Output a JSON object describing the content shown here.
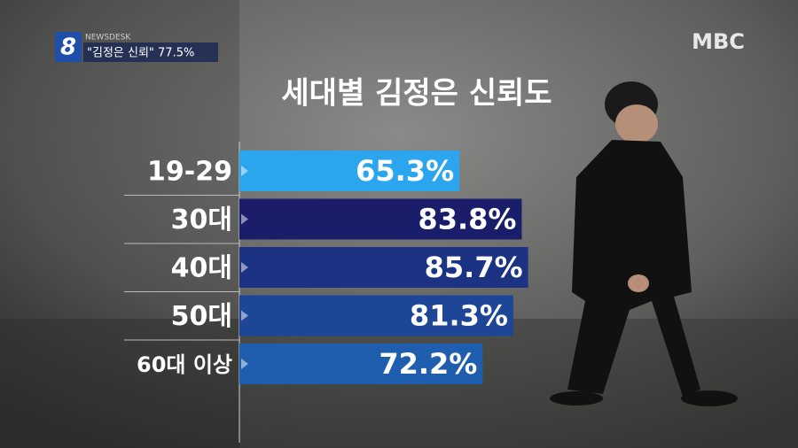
{
  "overlay": {
    "program": "NEWSDESK",
    "channel_number": "8",
    "headline": "\"김정은 신뢰\" 77.5%",
    "logo": "MBC"
  },
  "chart_data": {
    "type": "bar",
    "orientation": "horizontal",
    "title": "세대별 김정은 신뢰도",
    "categories": [
      "19-29",
      "30대",
      "40대",
      "50대",
      "60대 이상"
    ],
    "values": [
      65.3,
      83.8,
      85.7,
      81.3,
      72.2
    ],
    "value_labels": [
      "65.3%",
      "83.8%",
      "85.7%",
      "81.3%",
      "72.2%"
    ],
    "colors": [
      "#2ba6ee",
      "#1a1d6a",
      "#1c3384",
      "#1d4796",
      "#1f5eae"
    ]
  }
}
